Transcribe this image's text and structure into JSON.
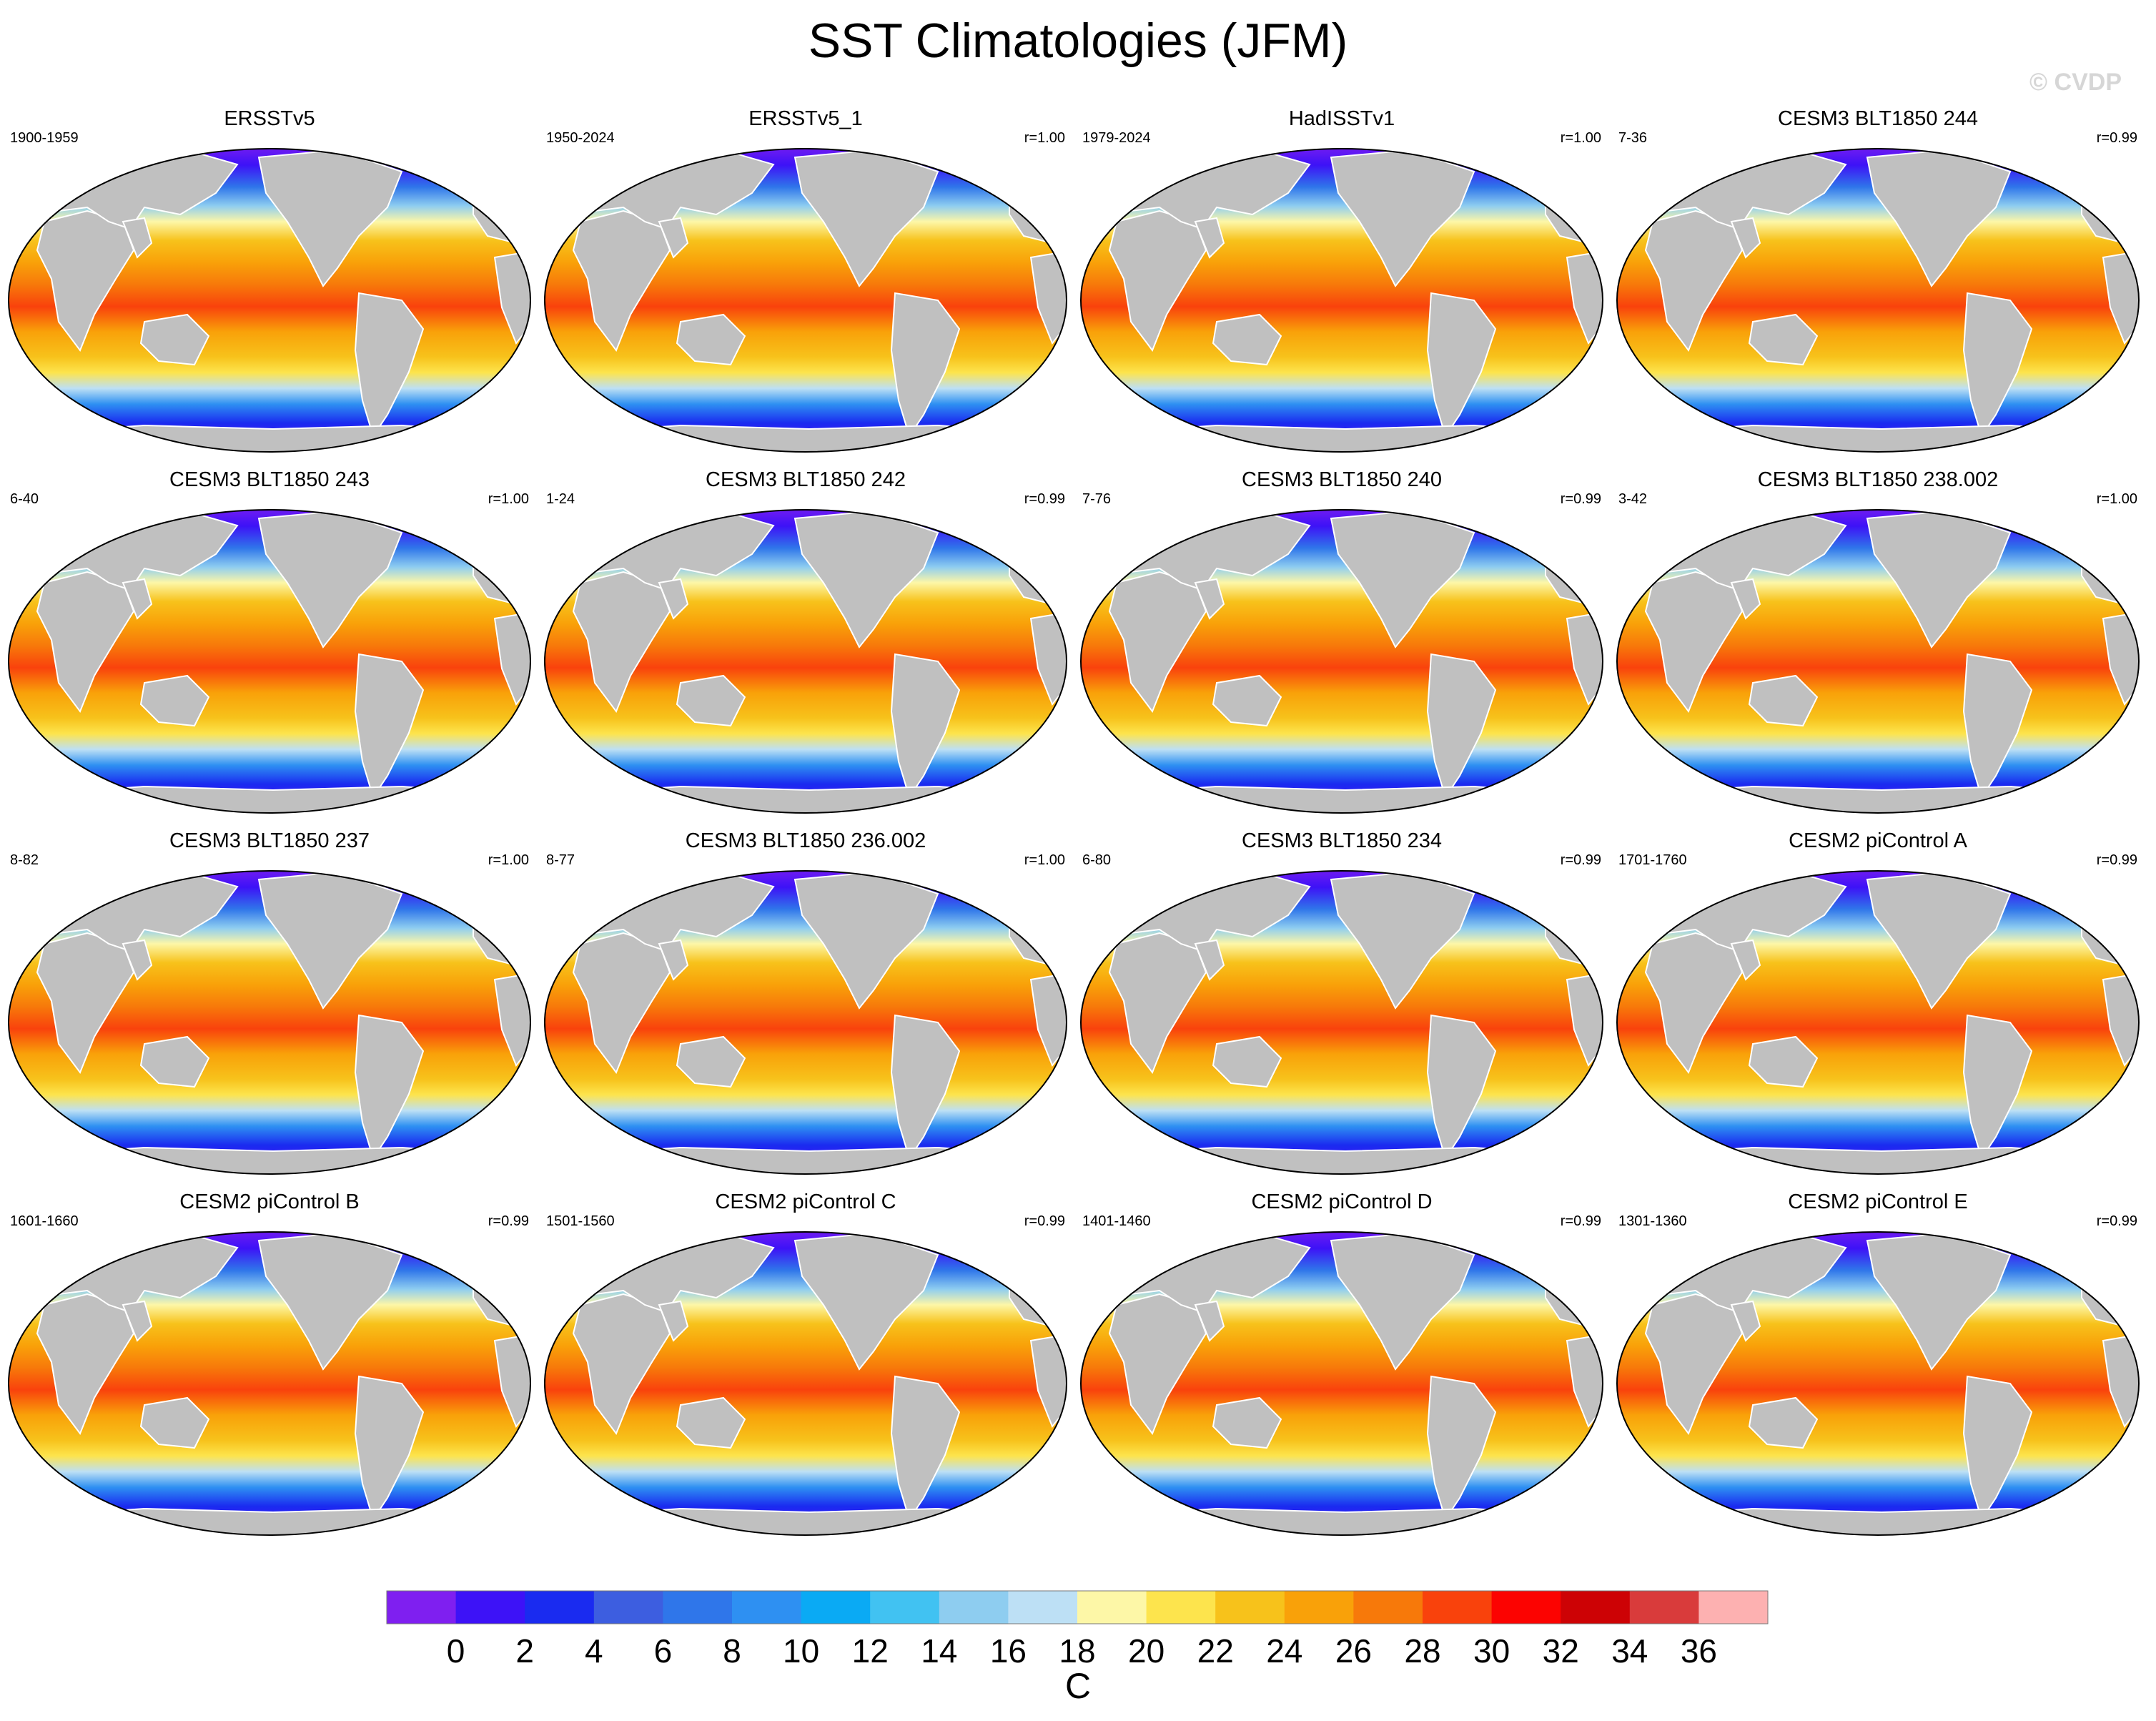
{
  "title": "SST Climatologies (JFM)",
  "watermark": "© CVDP",
  "panels": [
    {
      "title": "ERSSTv5",
      "period": "1900-1959",
      "r": ""
    },
    {
      "title": "ERSSTv5_1",
      "period": "1950-2024",
      "r": "r=1.00"
    },
    {
      "title": "HadISSTv1",
      "period": "1979-2024",
      "r": "r=1.00"
    },
    {
      "title": "CESM3 BLT1850 244",
      "period": "7-36",
      "r": "r=0.99"
    },
    {
      "title": "CESM3 BLT1850 243",
      "period": "6-40",
      "r": "r=1.00"
    },
    {
      "title": "CESM3 BLT1850 242",
      "period": "1-24",
      "r": "r=0.99"
    },
    {
      "title": "CESM3 BLT1850 240",
      "period": "7-76",
      "r": "r=0.99"
    },
    {
      "title": "CESM3 BLT1850 238.002",
      "period": "3-42",
      "r": "r=1.00"
    },
    {
      "title": "CESM3 BLT1850 237",
      "period": "8-82",
      "r": "r=1.00"
    },
    {
      "title": "CESM3 BLT1850 236.002",
      "period": "8-77",
      "r": "r=1.00"
    },
    {
      "title": "CESM3 BLT1850 234",
      "period": "6-80",
      "r": "r=0.99"
    },
    {
      "title": "CESM2 piControl A",
      "period": "1701-1760",
      "r": "r=0.99"
    },
    {
      "title": "CESM2 piControl B",
      "period": "1601-1660",
      "r": "r=0.99"
    },
    {
      "title": "CESM2 piControl C",
      "period": "1501-1560",
      "r": "r=0.99"
    },
    {
      "title": "CESM2 piControl D",
      "period": "1401-1460",
      "r": "r=0.99"
    },
    {
      "title": "CESM2 piControl E",
      "period": "1301-1360",
      "r": "r=0.99"
    }
  ],
  "colorbar": {
    "colors": [
      "#7f1ff0",
      "#3d12f7",
      "#1a2bf0",
      "#3d5ee0",
      "#2f76ea",
      "#2e90f2",
      "#0aaaf4",
      "#41c2f2",
      "#8ecdf0",
      "#bde0f5",
      "#fdf7a7",
      "#fde44d",
      "#f7c21b",
      "#f9a109",
      "#f7790a",
      "#f9420c",
      "#fc0301",
      "#cd0205",
      "#d93b3b",
      "#fdb1b1"
    ],
    "tick_labels": [
      "0",
      "2",
      "4",
      "6",
      "8",
      "10",
      "12",
      "14",
      "16",
      "18",
      "20",
      "22",
      "24",
      "26",
      "28",
      "30",
      "32",
      "34",
      "36"
    ],
    "units": "C"
  },
  "land_color": "#c0c0c0"
}
